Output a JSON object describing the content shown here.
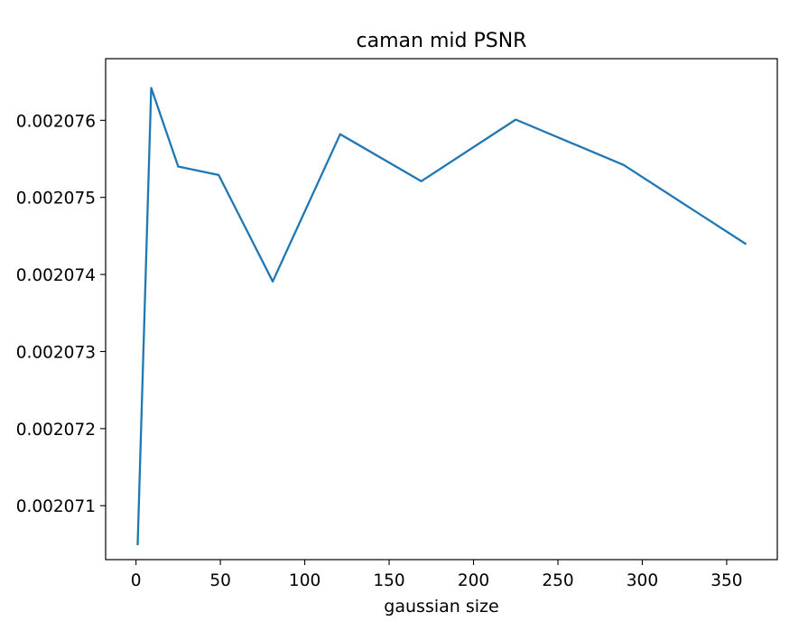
{
  "chart_data": {
    "type": "line",
    "title": "caman mid PSNR",
    "xlabel": "gaussian size",
    "ylabel": "",
    "xlim": [
      -18,
      380
    ],
    "ylim": [
      0.0020703,
      0.0020768
    ],
    "xticks": [
      0,
      50,
      100,
      150,
      200,
      250,
      300,
      350
    ],
    "xtick_labels": [
      "0",
      "50",
      "100",
      "150",
      "200",
      "250",
      "300",
      "350"
    ],
    "yticks": [
      0.002071,
      0.002072,
      0.002073,
      0.002074,
      0.002075,
      0.002076
    ],
    "ytick_labels": [
      "0.002071",
      "0.002072",
      "0.002073",
      "0.002074",
      "0.002075",
      "0.002076"
    ],
    "grid": false,
    "legend": "none",
    "series": [
      {
        "color": "#1f77b4",
        "x": [
          1,
          9,
          25,
          49,
          81,
          121,
          169,
          225,
          289,
          361
        ],
        "y": [
          0.0020705,
          0.00207642,
          0.0020754,
          0.00207529,
          0.00207391,
          0.00207582,
          0.00207521,
          0.00207601,
          0.00207542,
          0.0020744
        ]
      }
    ]
  }
}
